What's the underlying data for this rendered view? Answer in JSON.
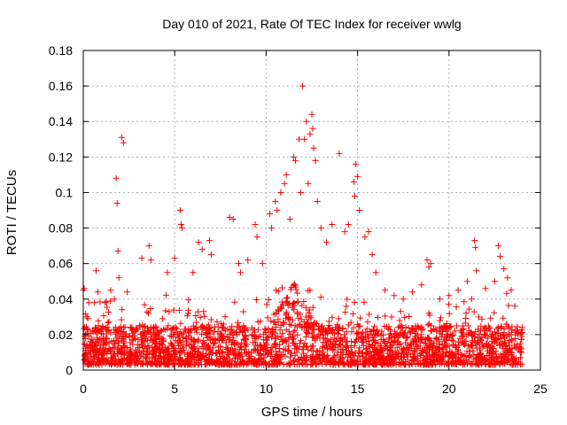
{
  "chart_data": {
    "type": "scatter",
    "title": "Day 010 of 2021, Rate Of TEC Index for receiver wwlg",
    "xlabel": "GPS time / hours",
    "ylabel": "ROTI / TECUs",
    "xlim": [
      0,
      25
    ],
    "ylim": [
      0,
      0.18
    ],
    "x_ticks": [
      "0",
      "5",
      "10",
      "15",
      "20",
      "25"
    ],
    "y_ticks": [
      "0",
      "0.02",
      "0.04",
      "0.06",
      "0.08",
      "0.1",
      "0.12",
      "0.14",
      "0.16",
      "0.18"
    ],
    "grid": true,
    "marker": "+",
    "series": [
      {
        "name": "ROTI",
        "color": "#ff0000",
        "points": [
          [
            0.0,
            0.045
          ],
          [
            0.05,
            0.046
          ],
          [
            0.2,
            0.03
          ],
          [
            0.3,
            0.038
          ],
          [
            0.5,
            0.022
          ],
          [
            0.7,
            0.056
          ],
          [
            0.8,
            0.044
          ],
          [
            1.2,
            0.038
          ],
          [
            1.5,
            0.045
          ],
          [
            1.7,
            0.04
          ],
          [
            1.8,
            0.108
          ],
          [
            1.85,
            0.094
          ],
          [
            1.9,
            0.067
          ],
          [
            1.95,
            0.052
          ],
          [
            2.1,
            0.131
          ],
          [
            2.2,
            0.128
          ],
          [
            2.4,
            0.044
          ],
          [
            3.2,
            0.063
          ],
          [
            3.6,
            0.07
          ],
          [
            3.7,
            0.062
          ],
          [
            4.6,
            0.055
          ],
          [
            5.0,
            0.063
          ],
          [
            5.3,
            0.09
          ],
          [
            5.35,
            0.082
          ],
          [
            5.4,
            0.08
          ],
          [
            6.0,
            0.055
          ],
          [
            6.3,
            0.072
          ],
          [
            6.5,
            0.068
          ],
          [
            6.9,
            0.073
          ],
          [
            7.0,
            0.065
          ],
          [
            8.0,
            0.086
          ],
          [
            8.2,
            0.085
          ],
          [
            8.5,
            0.06
          ],
          [
            8.6,
            0.055
          ],
          [
            9.0,
            0.062
          ],
          [
            9.4,
            0.082
          ],
          [
            9.5,
            0.075
          ],
          [
            9.8,
            0.06
          ],
          [
            10.2,
            0.088
          ],
          [
            10.3,
            0.08
          ],
          [
            10.5,
            0.095
          ],
          [
            10.6,
            0.09
          ],
          [
            10.8,
            0.1
          ],
          [
            11.0,
            0.105
          ],
          [
            11.1,
            0.11
          ],
          [
            11.3,
            0.085
          ],
          [
            11.5,
            0.12
          ],
          [
            11.6,
            0.118
          ],
          [
            11.8,
            0.13
          ],
          [
            11.9,
            0.1
          ],
          [
            12.0,
            0.16
          ],
          [
            12.1,
            0.13
          ],
          [
            12.2,
            0.14
          ],
          [
            12.3,
            0.105
          ],
          [
            12.4,
            0.133
          ],
          [
            12.5,
            0.144
          ],
          [
            12.55,
            0.136
          ],
          [
            12.6,
            0.125
          ],
          [
            12.7,
            0.118
          ],
          [
            12.8,
            0.095
          ],
          [
            13.0,
            0.08
          ],
          [
            13.3,
            0.072
          ],
          [
            13.6,
            0.082
          ],
          [
            14.0,
            0.122
          ],
          [
            14.3,
            0.078
          ],
          [
            14.5,
            0.082
          ],
          [
            14.8,
            0.106
          ],
          [
            14.85,
            0.098
          ],
          [
            14.9,
            0.116
          ],
          [
            15.0,
            0.109
          ],
          [
            15.1,
            0.09
          ],
          [
            15.4,
            0.075
          ],
          [
            15.6,
            0.078
          ],
          [
            15.8,
            0.065
          ],
          [
            16.0,
            0.055
          ],
          [
            16.5,
            0.045
          ],
          [
            17.0,
            0.042
          ],
          [
            17.5,
            0.04
          ],
          [
            18.0,
            0.044
          ],
          [
            18.5,
            0.048
          ],
          [
            18.8,
            0.062
          ],
          [
            18.9,
            0.058
          ],
          [
            19.0,
            0.06
          ],
          [
            19.5,
            0.04
          ],
          [
            20.0,
            0.042
          ],
          [
            20.5,
            0.045
          ],
          [
            21.0,
            0.05
          ],
          [
            21.4,
            0.073
          ],
          [
            21.45,
            0.069
          ],
          [
            21.5,
            0.056
          ],
          [
            22.0,
            0.046
          ],
          [
            22.5,
            0.05
          ],
          [
            22.7,
            0.07
          ],
          [
            22.8,
            0.064
          ],
          [
            23.0,
            0.057
          ],
          [
            23.2,
            0.052
          ],
          [
            23.4,
            0.045
          ],
          [
            23.6,
            0.036
          ],
          [
            24.0,
            0.024
          ]
        ],
        "dense_band": {
          "x_range": [
            0,
            24
          ],
          "baseline_range": [
            0.003,
            0.025
          ],
          "peak_region": {
            "x_range": [
              10,
              13
            ],
            "level": 0.05
          }
        }
      }
    ]
  }
}
